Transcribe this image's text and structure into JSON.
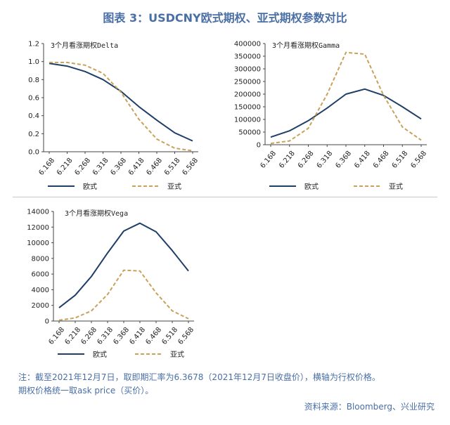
{
  "title": "图表 3：USDCNY欧式期权、亚式期权参数对比",
  "note_line1": "注：截至2021年12月7日，取即期汇率为6.3678（2021年12月7日收盘价），横轴为行权价格。",
  "note_line2": "期权价格统一取ask price（买价）。",
  "source": "资料来源：Bloomberg、兴业研究",
  "colors": {
    "european": "#1f3f66",
    "asian": "#c9a25a"
  },
  "chart_data": [
    {
      "type": "line",
      "title": "3个月看涨期权Delta",
      "categories": [
        "6.168",
        "6.218",
        "6.268",
        "6.318",
        "6.368",
        "6.418",
        "6.468",
        "6.518",
        "6.568"
      ],
      "ylim": [
        0,
        1.2
      ],
      "yticks": [
        0.0,
        0.2,
        0.4,
        0.6,
        0.8,
        1.0,
        1.2
      ],
      "ytick_labels": [
        "0.0",
        "0.2",
        "0.4",
        "0.6",
        "0.8",
        "1.0",
        "1.2"
      ],
      "series": [
        {
          "name": "欧式",
          "style": "solid",
          "values": [
            0.98,
            0.95,
            0.89,
            0.8,
            0.67,
            0.5,
            0.35,
            0.21,
            0.12
          ]
        },
        {
          "name": "亚式",
          "style": "dashed",
          "values": [
            0.99,
            0.99,
            0.96,
            0.87,
            0.66,
            0.36,
            0.14,
            0.04,
            0.01
          ]
        }
      ]
    },
    {
      "type": "line",
      "title": "3个月看涨期权Gamma",
      "categories": [
        "6.168",
        "6.218",
        "6.268",
        "6.318",
        "6.368",
        "6.418",
        "6.468",
        "6.518",
        "6.568"
      ],
      "ylim": [
        0,
        400000
      ],
      "yticks": [
        0,
        50000,
        100000,
        150000,
        200000,
        250000,
        300000,
        350000,
        400000
      ],
      "ytick_labels": [
        "0",
        "50000",
        "100000",
        "150000",
        "200000",
        "250000",
        "300000",
        "350000",
        "400000"
      ],
      "series": [
        {
          "name": "欧式",
          "style": "solid",
          "values": [
            30000,
            55000,
            95000,
            145000,
            200000,
            220000,
            195000,
            150000,
            102000
          ]
        },
        {
          "name": "亚式",
          "style": "dashed",
          "values": [
            5000,
            15000,
            65000,
            200000,
            365000,
            358000,
            195000,
            70000,
            18000
          ]
        }
      ]
    },
    {
      "type": "line",
      "title": "3个月看涨期权Vega",
      "categories": [
        "6.168",
        "6.218",
        "6.268",
        "6.318",
        "6.368",
        "6.418",
        "6.468",
        "6.518",
        "6.568"
      ],
      "ylim": [
        0,
        14000
      ],
      "yticks": [
        0,
        2000,
        4000,
        6000,
        8000,
        10000,
        12000,
        14000
      ],
      "ytick_labels": [
        "0",
        "2000",
        "4000",
        "6000",
        "8000",
        "10000",
        "12000",
        "14000"
      ],
      "series": [
        {
          "name": "欧式",
          "style": "solid",
          "values": [
            1700,
            3300,
            5700,
            8700,
            11500,
            12500,
            11400,
            9000,
            6400
          ]
        },
        {
          "name": "亚式",
          "style": "dashed",
          "values": [
            100,
            400,
            1300,
            3400,
            6500,
            6400,
            3600,
            1300,
            300
          ]
        }
      ]
    }
  ]
}
